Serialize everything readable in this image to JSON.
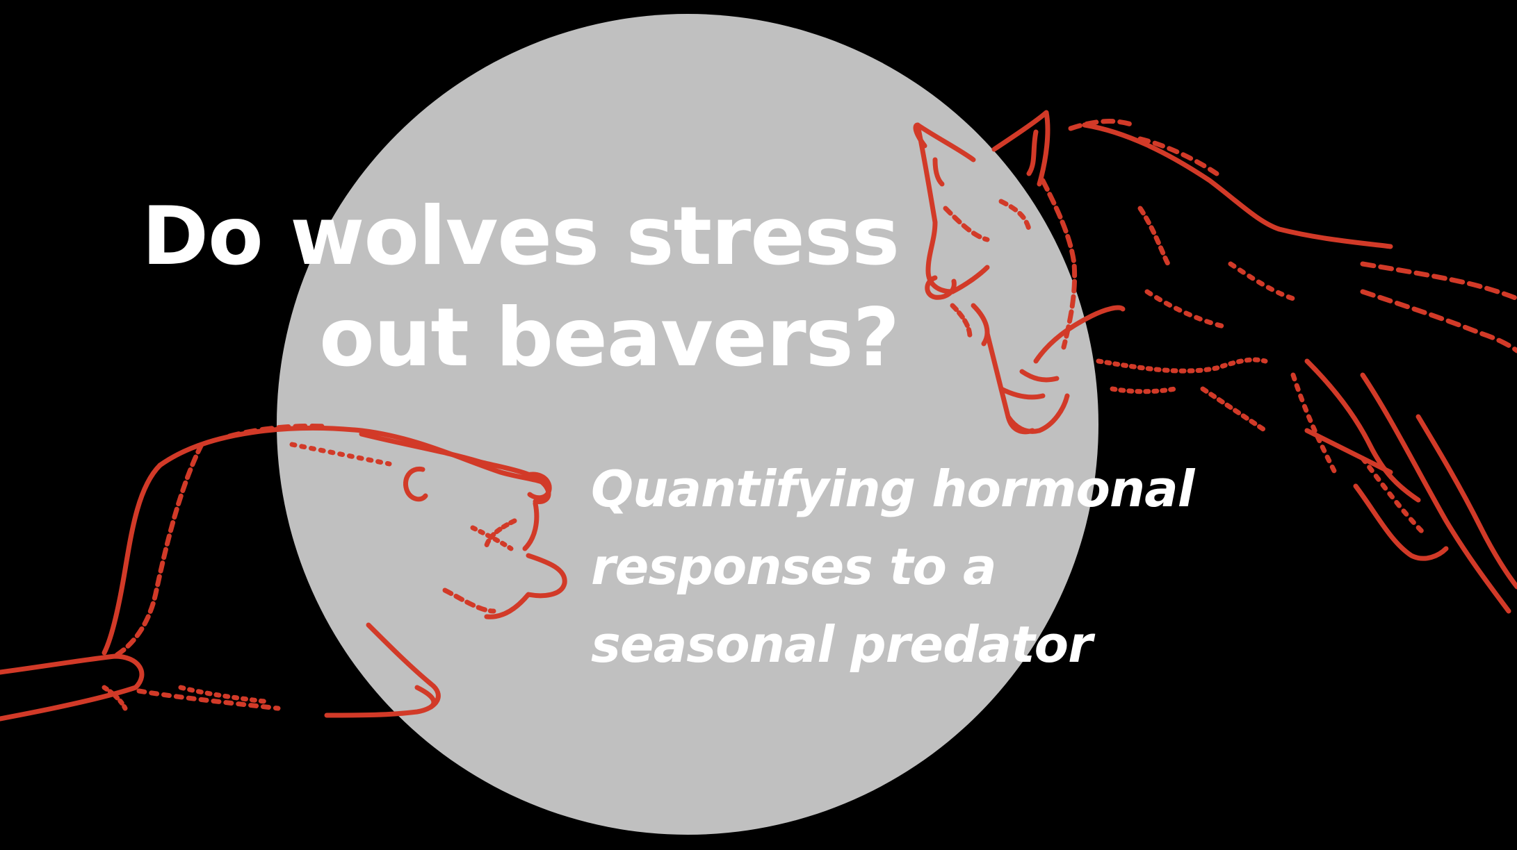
{
  "slide": {
    "title_lines": [
      "Do wolves stress",
      "out beavers?"
    ],
    "subtitle_lines": [
      "Quantifying hormonal",
      "responses to a",
      "seasonal predator"
    ]
  },
  "colors": {
    "background": "#000000",
    "moon": "#c0c0c0",
    "illustration_stroke": "#d23a28",
    "text": "#ffffff"
  },
  "illustrations": {
    "left": "beaver-line-drawing",
    "right": "wolf-line-drawing"
  }
}
